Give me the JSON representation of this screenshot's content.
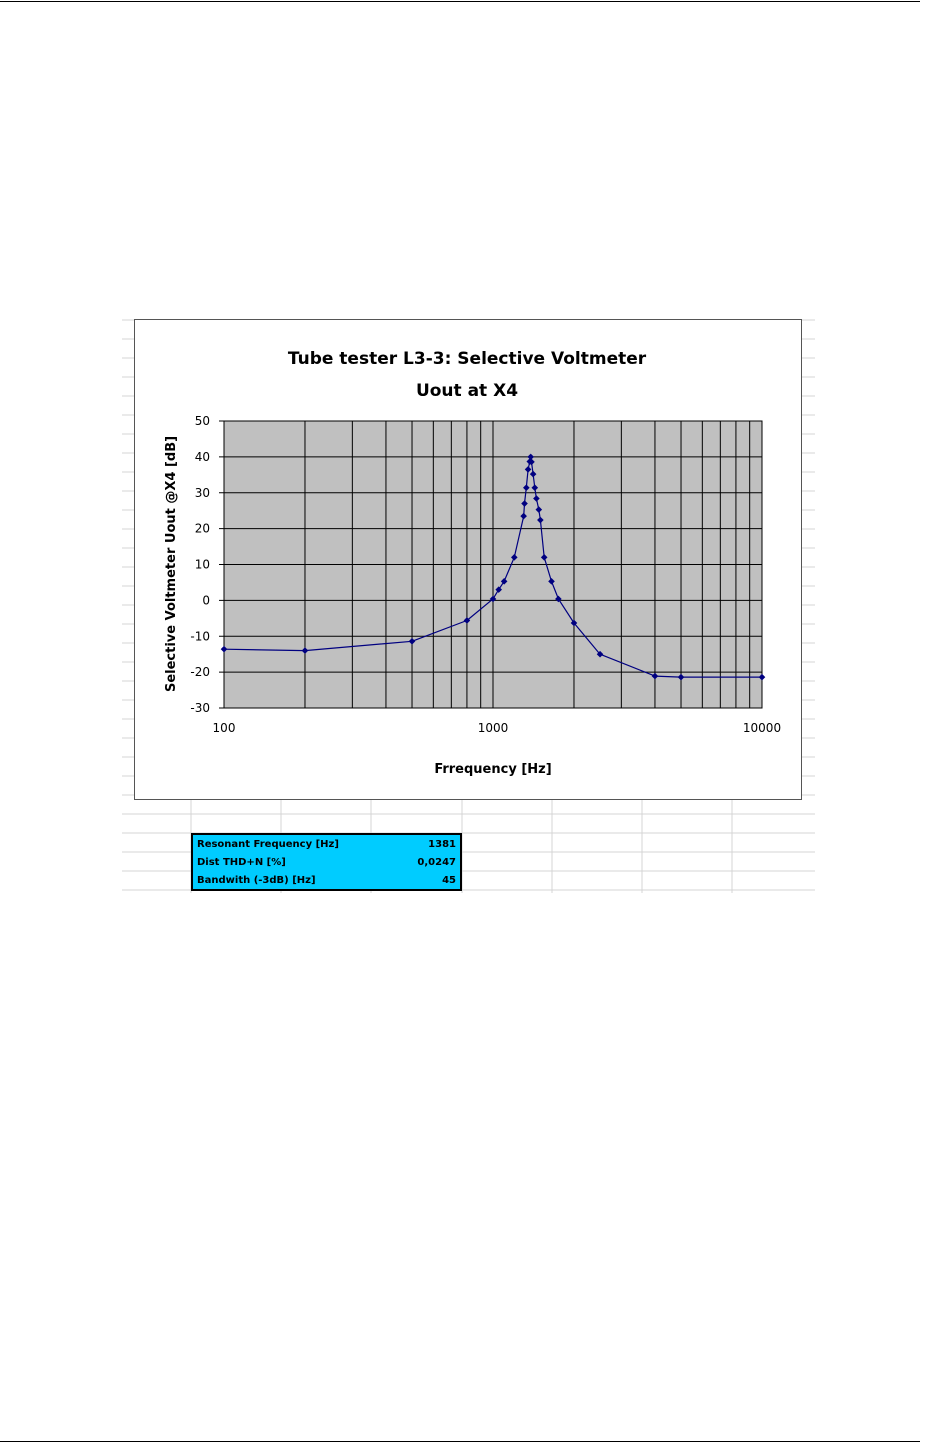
{
  "chart_data": {
    "type": "scatter",
    "title": "Tube tester L3-3: Selective Voltmeter",
    "subtitle": "Uout at X4",
    "xlabel": "Frrequency [Hz]",
    "ylabel": "Selective Voltmeter Uout @X4 [dB]",
    "xscale": "log",
    "xlim": [
      100,
      10000
    ],
    "ylim": [
      -30,
      50
    ],
    "xticks": [
      "100",
      "1000",
      "10000"
    ],
    "yticks": [
      "50",
      "40",
      "30",
      "20",
      "10",
      "0",
      "-10",
      "-20",
      "-30"
    ],
    "grid": true,
    "legend": "none",
    "series": [
      {
        "x": [
          100,
          200,
          500,
          800,
          1000,
          1050,
          1100,
          1200,
          1300,
          1310,
          1330,
          1350,
          1370,
          1381,
          1390,
          1410,
          1430,
          1450,
          1480,
          1500,
          1550,
          1650,
          1750,
          2000,
          2500,
          4000,
          5000,
          10000
        ],
        "y": [
          -13.6,
          -14,
          -11.4,
          -5.6,
          0.4,
          3,
          5.3,
          12,
          23.5,
          27,
          31.4,
          36.5,
          38.7,
          40,
          38.6,
          35.2,
          31.4,
          28.4,
          25.3,
          22.4,
          12,
          5.3,
          0.4,
          -6.3,
          -15,
          -21.1,
          -21.4,
          -21.4
        ]
      }
    ],
    "colors": {
      "plot_bg": "#c0c0c0",
      "line": "#000080",
      "marker": "#000080",
      "grid": "#000000"
    }
  },
  "table": {
    "rows": [
      {
        "label": "Resonant Frequency [Hz]",
        "value": "1381"
      },
      {
        "label": "Dist THD+N [%]",
        "value": "0,0247"
      },
      {
        "label": "Bandwith (-3dB) [Hz]",
        "value": "45"
      }
    ],
    "background": "#00ccff"
  }
}
